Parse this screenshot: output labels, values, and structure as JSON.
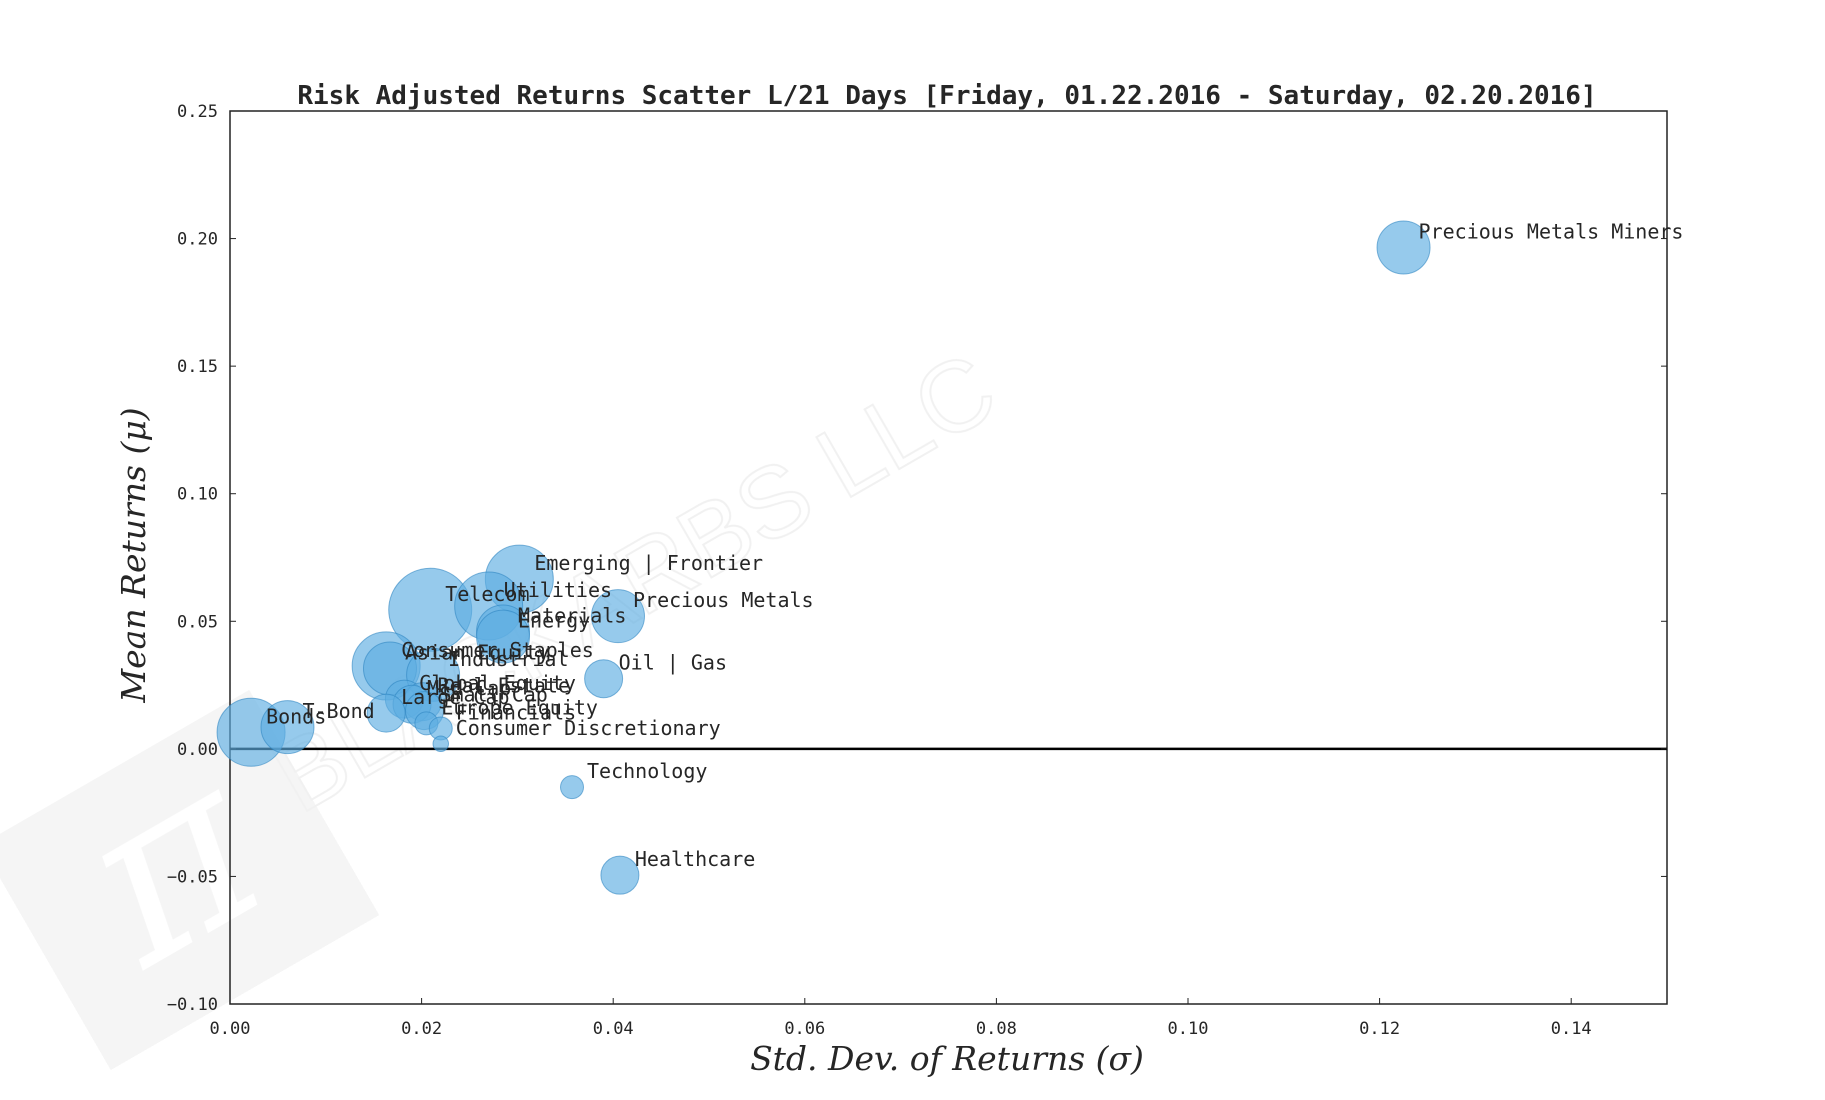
{
  "chart_data": {
    "type": "scatter",
    "title": "Risk Adjusted Returns Scatter L/21 Days [Friday, 01.22.2016 - Saturday, 02.20.2016]",
    "xlabel": "Std. Dev. of Returns (σ)",
    "ylabel": "Mean Returns (μ)",
    "xlim": [
      0.0,
      0.15
    ],
    "ylim": [
      -0.1,
      0.25
    ],
    "xticks": [
      "0.00",
      "0.02",
      "0.04",
      "0.06",
      "0.08",
      "0.10",
      "0.12",
      "0.14"
    ],
    "yticks": [
      "−0.10",
      "−0.05",
      "0.00",
      "0.05",
      "0.10",
      "0.15",
      "0.20",
      "0.25"
    ],
    "watermark": "BLACKARBS LLC",
    "point_color": "#5dade2",
    "points": [
      {
        "label": "Precious Metals Miners",
        "x": 0.1225,
        "y": 0.1965,
        "size": 3
      },
      {
        "label": "Emerging | Frontier",
        "x": 0.0302,
        "y": 0.0665,
        "size": 4
      },
      {
        "label": "Utilities",
        "x": 0.027,
        "y": 0.056,
        "size": 4
      },
      {
        "label": "Telecom",
        "x": 0.0209,
        "y": 0.0545,
        "size": 5
      },
      {
        "label": "Precious Metals",
        "x": 0.0405,
        "y": 0.052,
        "size": 3
      },
      {
        "label": "Materials",
        "x": 0.0285,
        "y": 0.046,
        "size": 3
      },
      {
        "label": "Energy",
        "x": 0.0285,
        "y": 0.044,
        "size": 3
      },
      {
        "label": "Consumer Staples",
        "x": 0.0163,
        "y": 0.0325,
        "size": 4
      },
      {
        "label": "Asian Equity",
        "x": 0.0167,
        "y": 0.0315,
        "size": 3
      },
      {
        "label": "Industrial",
        "x": 0.0212,
        "y": 0.029,
        "size": 3
      },
      {
        "label": "Oil | Gas",
        "x": 0.039,
        "y": 0.0275,
        "size": 2
      },
      {
        "label": "Global Equity",
        "x": 0.0182,
        "y": 0.0195,
        "size": 2
      },
      {
        "label": "Real Estate",
        "x": 0.0201,
        "y": 0.0185,
        "size": 2
      },
      {
        "label": "Mid Cap",
        "x": 0.019,
        "y": 0.0175,
        "size": 2
      },
      {
        "label": "Large Cap",
        "x": 0.0163,
        "y": 0.014,
        "size": 2
      },
      {
        "label": "Small Cap",
        "x": 0.0203,
        "y": 0.015,
        "size": 2
      },
      {
        "label": "T-Bond",
        "x": 0.006,
        "y": 0.0085,
        "size": 3
      },
      {
        "label": "Bonds",
        "x": 0.0022,
        "y": 0.0065,
        "size": 4
      },
      {
        "label": "Europe Equity",
        "x": 0.0205,
        "y": 0.01,
        "size": 1
      },
      {
        "label": "Financials",
        "x": 0.022,
        "y": 0.008,
        "size": 1
      },
      {
        "label": "Consumer Discretionary",
        "x": 0.022,
        "y": 0.002,
        "size": 0.5
      },
      {
        "label": "Technology",
        "x": 0.0357,
        "y": -0.015,
        "size": 1
      },
      {
        "label": "Healthcare",
        "x": 0.0407,
        "y": -0.0495,
        "size": 2
      }
    ]
  }
}
